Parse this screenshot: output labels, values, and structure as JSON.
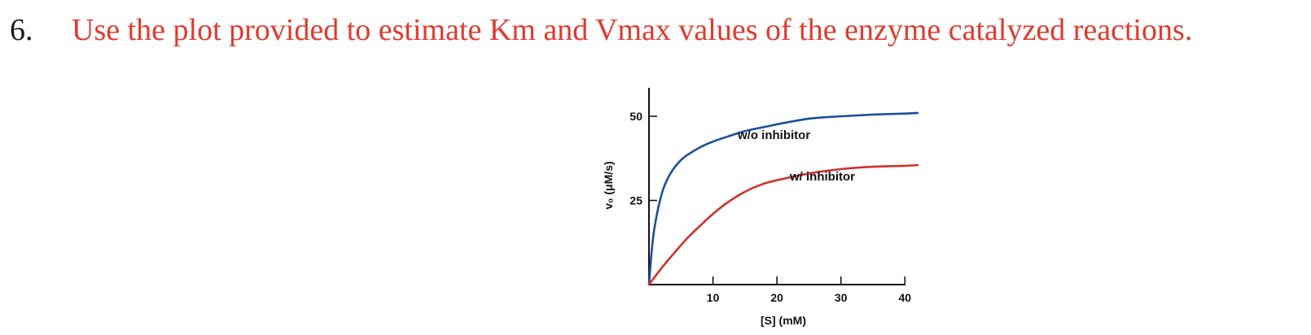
{
  "question": {
    "number": "6.",
    "text": "Use the plot provided to estimate Km and Vmax values of the enzyme catalyzed reactions."
  },
  "colors": {
    "question_text": "#e03a2f",
    "number_text": "#1a1a1a",
    "axis": "#111111"
  },
  "chart_data": {
    "type": "line",
    "title": "",
    "xlabel": "[S] (mM)",
    "ylabel": "v₀ (μM/s)",
    "xlim": [
      0,
      42
    ],
    "ylim": [
      0,
      50
    ],
    "xticks": [
      10,
      20,
      30,
      40
    ],
    "yticks": [
      25,
      50
    ],
    "grid": false,
    "legend": "none",
    "series": [
      {
        "name": "w/o inhibitor",
        "color": "#1f4e9c",
        "x": [
          0,
          0.5,
          1,
          2,
          3,
          4,
          5,
          6,
          8,
          10,
          12,
          15,
          18,
          20,
          25,
          30,
          35,
          40,
          42
        ],
        "y": [
          0,
          11.4,
          18.5,
          27.0,
          31.8,
          34.8,
          37.0,
          38.5,
          40.8,
          42.5,
          43.8,
          45.6,
          46.8,
          47.6,
          49.3,
          50.0,
          50.5,
          50.8,
          51.0
        ]
      },
      {
        "name": "w/ inhibitor",
        "color": "#d0312d",
        "x": [
          0,
          2,
          4,
          6,
          8,
          10,
          12,
          14,
          16,
          18,
          20,
          25,
          30,
          35,
          40,
          42
        ],
        "y": [
          0,
          5.0,
          9.5,
          13.8,
          17.5,
          21.0,
          24.0,
          26.5,
          28.5,
          30.0,
          31.0,
          33.0,
          34.3,
          35.0,
          35.3,
          35.5
        ]
      }
    ]
  }
}
